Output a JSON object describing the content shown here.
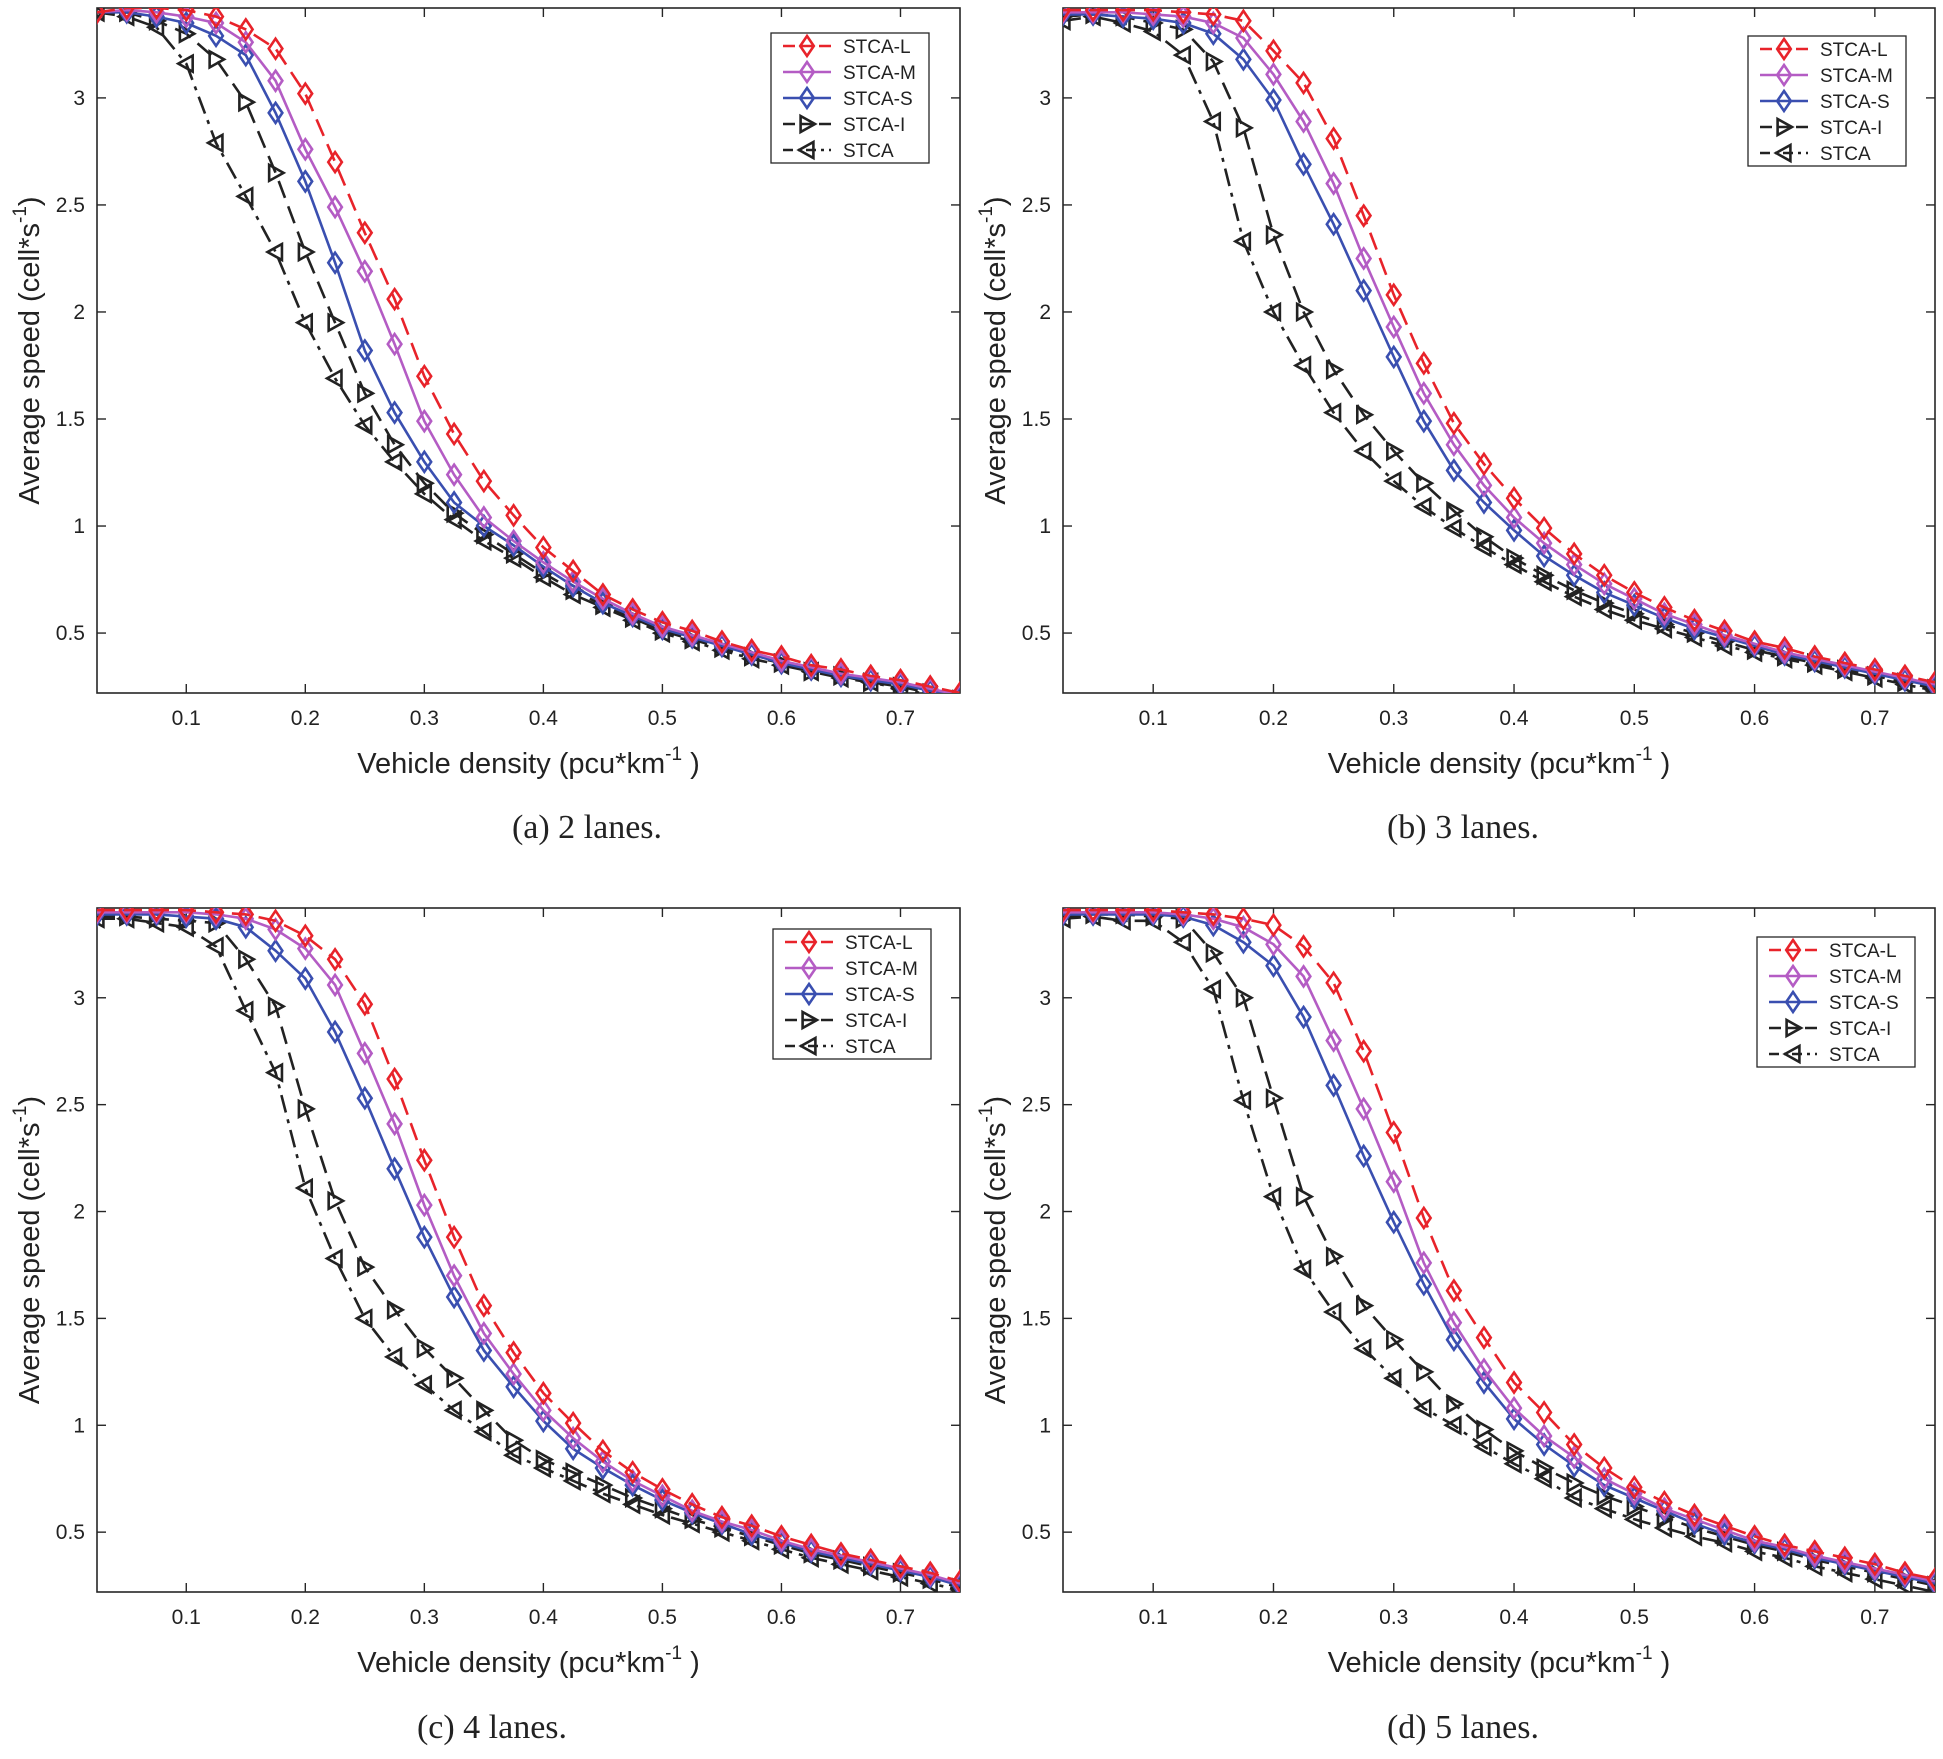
{
  "figure": {
    "captions": [
      "(a) 2 lanes.",
      "(b) 3 lanes.",
      "(c) 4 lanes.",
      "(d) 5 lanes."
    ]
  },
  "series_styles": {
    "STCA-L": {
      "color": "#e8232a",
      "dash": "dashed",
      "marker": "diamond"
    },
    "STCA-M": {
      "color": "#b45cc4",
      "dash": "solid",
      "marker": "diamond"
    },
    "STCA-S": {
      "color": "#3a4fb0",
      "dash": "solid",
      "marker": "diamond"
    },
    "STCA-I": {
      "color": "#222222",
      "dash": "dashed",
      "marker": "triangle-right"
    },
    "STCA": {
      "color": "#222222",
      "dash": "dashdot",
      "marker": "triangle-left"
    }
  },
  "chart_data": [
    {
      "type": "line",
      "title": "(a) 2 lanes.",
      "xlabel": "Vehicle density",
      "xlabel_unit": "(pcu*km",
      "xlabel_sup": "-1",
      "xlabel_close": ")",
      "ylabel": "Average speed (cell*s",
      "ylabel_sup": "-1",
      "ylabel_close": ")",
      "xlim": [
        0.025,
        0.75
      ],
      "ylim": [
        0.22,
        3.42
      ],
      "xticks": [
        0.1,
        0.2,
        0.3,
        0.4,
        0.5,
        0.6,
        0.7
      ],
      "xtick_labels": [
        "0.1",
        "0.2",
        "0.3",
        "0.4",
        "0.5",
        "0.6",
        "0.7"
      ],
      "yticks": [
        0.5,
        1,
        1.5,
        2,
        2.5,
        3
      ],
      "ytick_labels": [
        "0.5",
        "1",
        "1.5",
        "2",
        "2.5",
        "3"
      ],
      "legend": [
        "STCA-L",
        "STCA-M",
        "STCA-S",
        "STCA-I",
        "STCA"
      ],
      "legend_position": "top-right",
      "x": [
        0.025,
        0.05,
        0.075,
        0.1,
        0.125,
        0.15,
        0.175,
        0.2,
        0.225,
        0.25,
        0.275,
        0.3,
        0.325,
        0.35,
        0.375,
        0.4,
        0.425,
        0.45,
        0.475,
        0.5,
        0.525,
        0.55,
        0.575,
        0.6,
        0.625,
        0.65,
        0.675,
        0.7,
        0.725,
        0.75
      ],
      "series": [
        {
          "name": "STCA-L",
          "values": [
            3.4,
            3.42,
            3.42,
            3.41,
            3.38,
            3.32,
            3.23,
            3.02,
            2.7,
            2.37,
            2.06,
            1.7,
            1.43,
            1.21,
            1.05,
            0.9,
            0.79,
            0.68,
            0.61,
            0.55,
            0.51,
            0.46,
            0.42,
            0.39,
            0.35,
            0.33,
            0.3,
            0.28,
            0.25,
            0.22
          ]
        },
        {
          "name": "STCA-M",
          "values": [
            3.4,
            3.41,
            3.4,
            3.38,
            3.35,
            3.26,
            3.08,
            2.76,
            2.49,
            2.19,
            1.85,
            1.49,
            1.24,
            1.04,
            0.93,
            0.83,
            0.74,
            0.66,
            0.59,
            0.53,
            0.49,
            0.45,
            0.41,
            0.37,
            0.34,
            0.31,
            0.29,
            0.27,
            0.24,
            0.21
          ]
        },
        {
          "name": "STCA-S",
          "values": [
            3.4,
            3.4,
            3.38,
            3.35,
            3.29,
            3.2,
            2.93,
            2.61,
            2.23,
            1.82,
            1.53,
            1.3,
            1.11,
            1.0,
            0.91,
            0.81,
            0.72,
            0.64,
            0.58,
            0.52,
            0.48,
            0.44,
            0.4,
            0.36,
            0.33,
            0.3,
            0.28,
            0.26,
            0.23,
            0.2
          ]
        },
        {
          "name": "STCA-I",
          "values": [
            3.4,
            3.4,
            3.36,
            3.3,
            3.18,
            2.98,
            2.65,
            2.28,
            1.95,
            1.62,
            1.38,
            1.2,
            1.06,
            0.96,
            0.87,
            0.78,
            0.7,
            0.63,
            0.57,
            0.51,
            0.47,
            0.43,
            0.39,
            0.36,
            0.32,
            0.3,
            0.27,
            0.25,
            0.22,
            0.19
          ]
        },
        {
          "name": "STCA",
          "values": [
            3.4,
            3.38,
            3.33,
            3.16,
            2.79,
            2.54,
            2.28,
            1.95,
            1.69,
            1.47,
            1.3,
            1.15,
            1.03,
            0.93,
            0.85,
            0.76,
            0.68,
            0.62,
            0.56,
            0.5,
            0.46,
            0.42,
            0.38,
            0.35,
            0.32,
            0.29,
            0.27,
            0.24,
            0.21,
            0.19
          ]
        }
      ]
    },
    {
      "type": "line",
      "title": "(b) 3 lanes.",
      "xlabel": "Vehicle density",
      "xlabel_unit": "(pcu*km",
      "xlabel_sup": "-1",
      "xlabel_close": ")",
      "ylabel": "Average speed (cell*s",
      "ylabel_sup": "-1",
      "ylabel_close": ")",
      "xlim": [
        0.025,
        0.75
      ],
      "ylim": [
        0.22,
        3.42
      ],
      "xticks": [
        0.1,
        0.2,
        0.3,
        0.4,
        0.5,
        0.6,
        0.7
      ],
      "xtick_labels": [
        "0.1",
        "0.2",
        "0.3",
        "0.4",
        "0.5",
        "0.6",
        "0.7"
      ],
      "yticks": [
        0.5,
        1,
        1.5,
        2,
        2.5,
        3
      ],
      "ytick_labels": [
        "0.5",
        "1",
        "1.5",
        "2",
        "2.5",
        "3"
      ],
      "legend": [
        "STCA-L",
        "STCA-M",
        "STCA-S",
        "STCA-I",
        "STCA"
      ],
      "legend_position": "top-right",
      "x": [
        0.025,
        0.05,
        0.075,
        0.1,
        0.125,
        0.15,
        0.175,
        0.2,
        0.225,
        0.25,
        0.275,
        0.3,
        0.325,
        0.35,
        0.375,
        0.4,
        0.425,
        0.45,
        0.475,
        0.5,
        0.525,
        0.55,
        0.575,
        0.6,
        0.625,
        0.65,
        0.675,
        0.7,
        0.725,
        0.75
      ],
      "series": [
        {
          "name": "STCA-L",
          "values": [
            3.41,
            3.41,
            3.41,
            3.41,
            3.4,
            3.39,
            3.36,
            3.22,
            3.07,
            2.81,
            2.45,
            2.08,
            1.76,
            1.48,
            1.29,
            1.13,
            0.99,
            0.87,
            0.77,
            0.69,
            0.62,
            0.56,
            0.51,
            0.46,
            0.43,
            0.39,
            0.36,
            0.33,
            0.3,
            0.27
          ]
        },
        {
          "name": "STCA-M",
          "values": [
            3.4,
            3.4,
            3.4,
            3.39,
            3.38,
            3.35,
            3.28,
            3.11,
            2.89,
            2.6,
            2.25,
            1.93,
            1.62,
            1.38,
            1.19,
            1.04,
            0.92,
            0.82,
            0.73,
            0.66,
            0.59,
            0.54,
            0.49,
            0.45,
            0.41,
            0.38,
            0.35,
            0.32,
            0.29,
            0.26
          ]
        },
        {
          "name": "STCA-S",
          "values": [
            3.39,
            3.39,
            3.38,
            3.37,
            3.35,
            3.3,
            3.18,
            2.99,
            2.69,
            2.41,
            2.1,
            1.79,
            1.49,
            1.26,
            1.11,
            0.98,
            0.86,
            0.77,
            0.69,
            0.63,
            0.57,
            0.52,
            0.48,
            0.44,
            0.4,
            0.37,
            0.34,
            0.31,
            0.28,
            0.25
          ]
        },
        {
          "name": "STCA-I",
          "values": [
            3.38,
            3.39,
            3.38,
            3.35,
            3.32,
            3.17,
            2.86,
            2.36,
            2.0,
            1.73,
            1.52,
            1.35,
            1.2,
            1.07,
            0.95,
            0.85,
            0.77,
            0.7,
            0.64,
            0.59,
            0.54,
            0.5,
            0.46,
            0.42,
            0.39,
            0.36,
            0.33,
            0.3,
            0.27,
            0.24
          ]
        },
        {
          "name": "STCA",
          "values": [
            3.36,
            3.38,
            3.35,
            3.31,
            3.2,
            2.89,
            2.33,
            2.0,
            1.75,
            1.53,
            1.35,
            1.21,
            1.09,
            0.99,
            0.9,
            0.82,
            0.74,
            0.67,
            0.61,
            0.56,
            0.52,
            0.48,
            0.44,
            0.41,
            0.38,
            0.35,
            0.32,
            0.29,
            0.26,
            0.23
          ]
        }
      ]
    },
    {
      "type": "line",
      "title": "(c) 4 lanes.",
      "xlabel": "Vehicle density",
      "xlabel_unit": "(pcu*km",
      "xlabel_sup": "-1",
      "xlabel_close": ")",
      "ylabel": "Average speed (cell*s",
      "ylabel_sup": "-1",
      "ylabel_close": ")",
      "xlim": [
        0.025,
        0.75
      ],
      "ylim": [
        0.22,
        3.42
      ],
      "xticks": [
        0.1,
        0.2,
        0.3,
        0.4,
        0.5,
        0.6,
        0.7
      ],
      "xtick_labels": [
        "0.1",
        "0.2",
        "0.3",
        "0.4",
        "0.5",
        "0.6",
        "0.7"
      ],
      "yticks": [
        0.5,
        1,
        1.5,
        2,
        2.5,
        3
      ],
      "ytick_labels": [
        "0.5",
        "1",
        "1.5",
        "2",
        "2.5",
        "3"
      ],
      "legend": [
        "STCA-L",
        "STCA-M",
        "STCA-S",
        "STCA-I",
        "STCA"
      ],
      "legend_position": "top-right",
      "x": [
        0.025,
        0.05,
        0.075,
        0.1,
        0.125,
        0.15,
        0.175,
        0.2,
        0.225,
        0.25,
        0.275,
        0.3,
        0.325,
        0.35,
        0.375,
        0.4,
        0.425,
        0.45,
        0.475,
        0.5,
        0.525,
        0.55,
        0.575,
        0.6,
        0.625,
        0.65,
        0.675,
        0.7,
        0.725,
        0.75
      ],
      "series": [
        {
          "name": "STCA-L",
          "values": [
            3.41,
            3.41,
            3.41,
            3.41,
            3.4,
            3.39,
            3.36,
            3.29,
            3.18,
            2.97,
            2.62,
            2.24,
            1.88,
            1.56,
            1.34,
            1.15,
            1.01,
            0.88,
            0.78,
            0.7,
            0.63,
            0.57,
            0.53,
            0.48,
            0.44,
            0.4,
            0.37,
            0.34,
            0.31,
            0.27
          ]
        },
        {
          "name": "STCA-M",
          "values": [
            3.4,
            3.4,
            3.4,
            3.4,
            3.39,
            3.37,
            3.32,
            3.23,
            3.06,
            2.74,
            2.41,
            2.03,
            1.7,
            1.43,
            1.24,
            1.07,
            0.94,
            0.83,
            0.74,
            0.67,
            0.6,
            0.55,
            0.51,
            0.46,
            0.42,
            0.39,
            0.36,
            0.33,
            0.3,
            0.26
          ]
        },
        {
          "name": "STCA-S",
          "values": [
            3.39,
            3.39,
            3.39,
            3.38,
            3.37,
            3.33,
            3.22,
            3.09,
            2.84,
            2.53,
            2.2,
            1.88,
            1.6,
            1.35,
            1.18,
            1.02,
            0.89,
            0.8,
            0.72,
            0.65,
            0.59,
            0.54,
            0.49,
            0.45,
            0.41,
            0.38,
            0.35,
            0.32,
            0.29,
            0.25
          ]
        },
        {
          "name": "STCA-I",
          "values": [
            3.38,
            3.38,
            3.37,
            3.36,
            3.35,
            3.18,
            2.96,
            2.48,
            2.05,
            1.74,
            1.54,
            1.36,
            1.22,
            1.07,
            0.93,
            0.84,
            0.78,
            0.72,
            0.66,
            0.61,
            0.56,
            0.52,
            0.48,
            0.44,
            0.4,
            0.37,
            0.34,
            0.31,
            0.28,
            0.24
          ]
        },
        {
          "name": "STCA",
          "values": [
            3.37,
            3.37,
            3.35,
            3.33,
            3.24,
            2.94,
            2.65,
            2.11,
            1.78,
            1.5,
            1.32,
            1.19,
            1.07,
            0.97,
            0.86,
            0.8,
            0.74,
            0.68,
            0.63,
            0.58,
            0.54,
            0.5,
            0.46,
            0.42,
            0.38,
            0.35,
            0.32,
            0.29,
            0.26,
            0.23
          ]
        }
      ]
    },
    {
      "type": "line",
      "title": "(d) 5 lanes.",
      "xlabel": "Vehicle density",
      "xlabel_unit": "(pcu*km",
      "xlabel_sup": "-1",
      "xlabel_close": ")",
      "ylabel": "Average speed (cell*s",
      "ylabel_sup": "-1",
      "ylabel_close": ")",
      "xlim": [
        0.025,
        0.75
      ],
      "ylim": [
        0.22,
        3.42
      ],
      "xticks": [
        0.1,
        0.2,
        0.3,
        0.4,
        0.5,
        0.6,
        0.7
      ],
      "xtick_labels": [
        "0.1",
        "0.2",
        "0.3",
        "0.4",
        "0.5",
        "0.6",
        "0.7"
      ],
      "yticks": [
        0.5,
        1,
        1.5,
        2,
        2.5,
        3
      ],
      "ytick_labels": [
        "0.5",
        "1",
        "1.5",
        "2",
        "2.5",
        "3"
      ],
      "legend": [
        "STCA-L",
        "STCA-M",
        "STCA-S",
        "STCA-I",
        "STCA"
      ],
      "legend_position": "top-right",
      "x": [
        0.025,
        0.05,
        0.075,
        0.1,
        0.125,
        0.15,
        0.175,
        0.2,
        0.225,
        0.25,
        0.275,
        0.3,
        0.325,
        0.35,
        0.375,
        0.4,
        0.425,
        0.45,
        0.475,
        0.5,
        0.525,
        0.55,
        0.575,
        0.6,
        0.625,
        0.65,
        0.675,
        0.7,
        0.725,
        0.75
      ],
      "series": [
        {
          "name": "STCA-L",
          "values": [
            3.41,
            3.41,
            3.41,
            3.41,
            3.4,
            3.39,
            3.37,
            3.34,
            3.24,
            3.07,
            2.75,
            2.37,
            1.97,
            1.63,
            1.41,
            1.2,
            1.06,
            0.91,
            0.8,
            0.71,
            0.64,
            0.58,
            0.53,
            0.48,
            0.44,
            0.41,
            0.38,
            0.35,
            0.31,
            0.28
          ]
        },
        {
          "name": "STCA-M",
          "values": [
            3.4,
            3.4,
            3.4,
            3.4,
            3.39,
            3.37,
            3.33,
            3.25,
            3.1,
            2.8,
            2.48,
            2.14,
            1.76,
            1.48,
            1.26,
            1.08,
            0.95,
            0.85,
            0.75,
            0.68,
            0.61,
            0.56,
            0.51,
            0.46,
            0.43,
            0.39,
            0.36,
            0.33,
            0.3,
            0.27
          ]
        },
        {
          "name": "STCA-S",
          "values": [
            3.39,
            3.39,
            3.39,
            3.39,
            3.38,
            3.34,
            3.26,
            3.15,
            2.91,
            2.59,
            2.26,
            1.95,
            1.66,
            1.4,
            1.2,
            1.03,
            0.91,
            0.81,
            0.72,
            0.66,
            0.6,
            0.54,
            0.49,
            0.45,
            0.42,
            0.38,
            0.35,
            0.32,
            0.29,
            0.26
          ]
        },
        {
          "name": "STCA-I",
          "values": [
            3.38,
            3.39,
            3.39,
            3.38,
            3.37,
            3.21,
            3.0,
            2.53,
            2.07,
            1.79,
            1.56,
            1.4,
            1.25,
            1.1,
            0.98,
            0.88,
            0.8,
            0.73,
            0.67,
            0.62,
            0.57,
            0.52,
            0.48,
            0.44,
            0.41,
            0.37,
            0.34,
            0.31,
            0.28,
            0.25
          ]
        },
        {
          "name": "STCA",
          "values": [
            3.37,
            3.38,
            3.36,
            3.36,
            3.26,
            3.04,
            2.52,
            2.07,
            1.73,
            1.53,
            1.36,
            1.22,
            1.08,
            1.0,
            0.9,
            0.82,
            0.75,
            0.66,
            0.61,
            0.56,
            0.52,
            0.48,
            0.45,
            0.41,
            0.38,
            0.34,
            0.31,
            0.28,
            0.25,
            0.22
          ]
        }
      ]
    }
  ]
}
